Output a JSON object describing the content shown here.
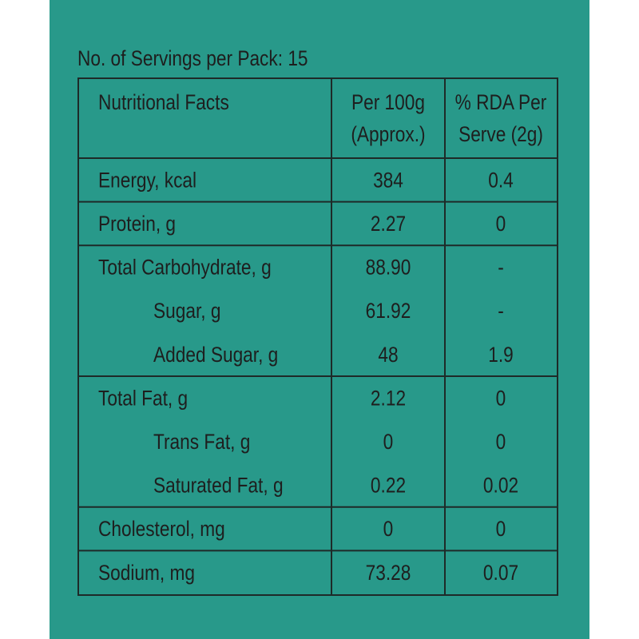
{
  "header": {
    "servings": "No. of Servings per Pack: 15"
  },
  "table": {
    "columns": [
      [
        "Nutritional Facts"
      ],
      [
        "Per 100g",
        "(Approx.)"
      ],
      [
        "% RDA Per",
        "Serve (2g)"
      ]
    ],
    "groups": [
      [
        [
          "Energy, kcal",
          "384",
          "0.4"
        ]
      ],
      [
        [
          "Protein, g",
          "2.27",
          "0"
        ]
      ],
      [
        [
          "Total Carbohydrate, g",
          "88.90",
          "-"
        ],
        [
          "Sugar, g",
          "61.92",
          "-"
        ],
        [
          "Added Sugar, g",
          "48",
          "1.9"
        ]
      ],
      [
        [
          "Total Fat, g",
          "2.12",
          "0"
        ],
        [
          "Trans Fat, g",
          "0",
          "0"
        ],
        [
          "Saturated Fat, g",
          "0.22",
          "0.02"
        ]
      ],
      [
        [
          "Cholesterol, mg",
          "0",
          "0"
        ]
      ],
      [
        [
          "Sodium, mg",
          "73.28",
          "0.07"
        ]
      ]
    ]
  }
}
